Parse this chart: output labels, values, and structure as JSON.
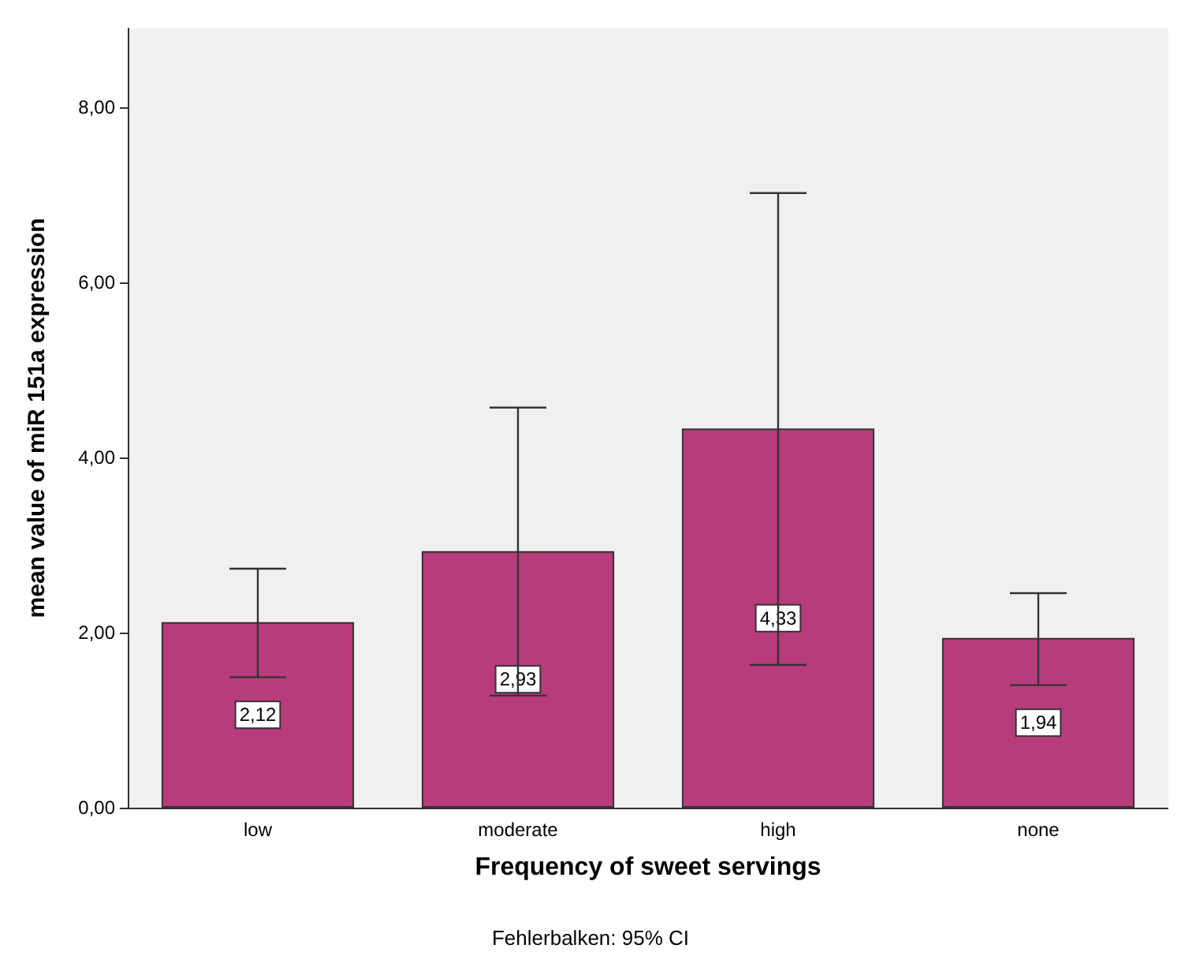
{
  "chart_data": {
    "type": "bar",
    "xlabel": "Frequency of sweet servings",
    "ylabel": "mean value of miR 151a expression",
    "categories": [
      "low",
      "moderate",
      "high",
      "none"
    ],
    "values": [
      2.12,
      2.93,
      4.33,
      1.94
    ],
    "value_labels": [
      "2,12",
      "2,93",
      "4,33",
      "1,94"
    ],
    "errors": [
      [
        1.49,
        2.73
      ],
      [
        1.28,
        4.57
      ],
      [
        1.63,
        7.02
      ],
      [
        1.4,
        2.45
      ]
    ],
    "color": "#b83c7c",
    "ylim": [
      0,
      8.9
    ],
    "yticks": [
      {
        "value": 0,
        "label": "0,00"
      },
      {
        "value": 2,
        "label": "2,00"
      },
      {
        "value": 4,
        "label": "4,00"
      },
      {
        "value": 6,
        "label": "6,00"
      },
      {
        "value": 8,
        "label": "8,00"
      }
    ],
    "grid": false,
    "annotations": [
      "Fehlerbalken: 95% CI"
    ]
  }
}
